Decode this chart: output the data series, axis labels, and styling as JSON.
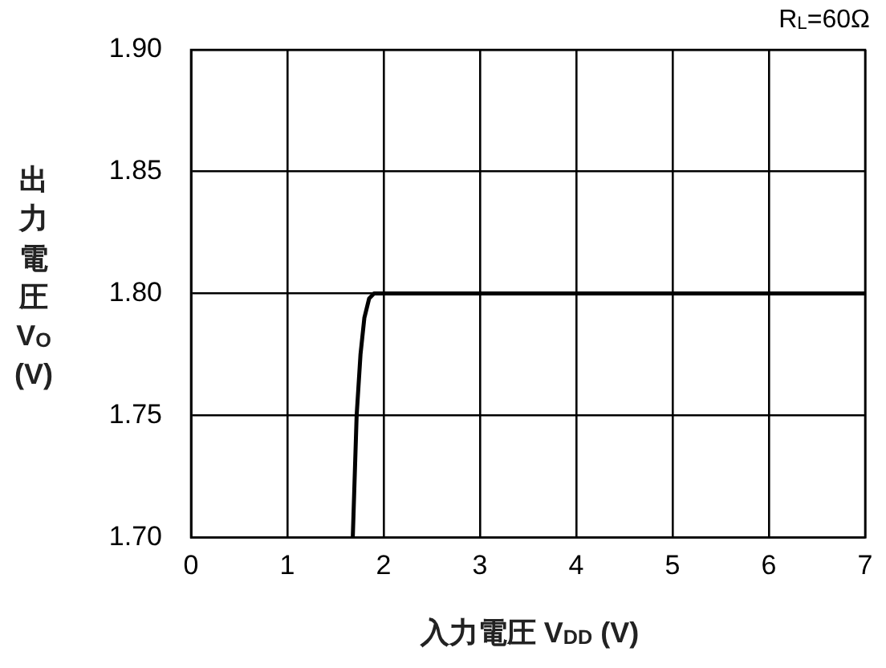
{
  "chart_data": {
    "type": "line",
    "xlabel": "入力電圧 V$_{DD}$ (V)",
    "ylabel": "出力電圧 V$_{O}$ (V)",
    "annotations": [
      "R$_{L}$=60Ω"
    ],
    "x": [
      1.68,
      1.72,
      1.76,
      1.8,
      1.85,
      1.9,
      2.5,
      3,
      4,
      5,
      6,
      7
    ],
    "series": [
      {
        "color": "#000000",
        "values": [
          1.7,
          1.75,
          1.775,
          1.79,
          1.798,
          1.8,
          1.8,
          1.8,
          1.8,
          1.8,
          1.8,
          1.8
        ]
      }
    ],
    "xlim": [
      0,
      7
    ],
    "xticks": [
      0,
      1,
      2,
      3,
      4,
      5,
      6,
      7
    ],
    "ylim": [
      1.7,
      1.9
    ],
    "yticks": [
      {
        "value": 1.7,
        "label": "1.70"
      },
      {
        "value": 1.75,
        "label": "1.75"
      },
      {
        "value": 1.8,
        "label": "1.80"
      },
      {
        "value": 1.85,
        "label": "1.85"
      },
      {
        "value": 1.9,
        "label": "1.90"
      }
    ],
    "grid": true,
    "marker": "none",
    "line_style": "solid",
    "legend": false
  }
}
